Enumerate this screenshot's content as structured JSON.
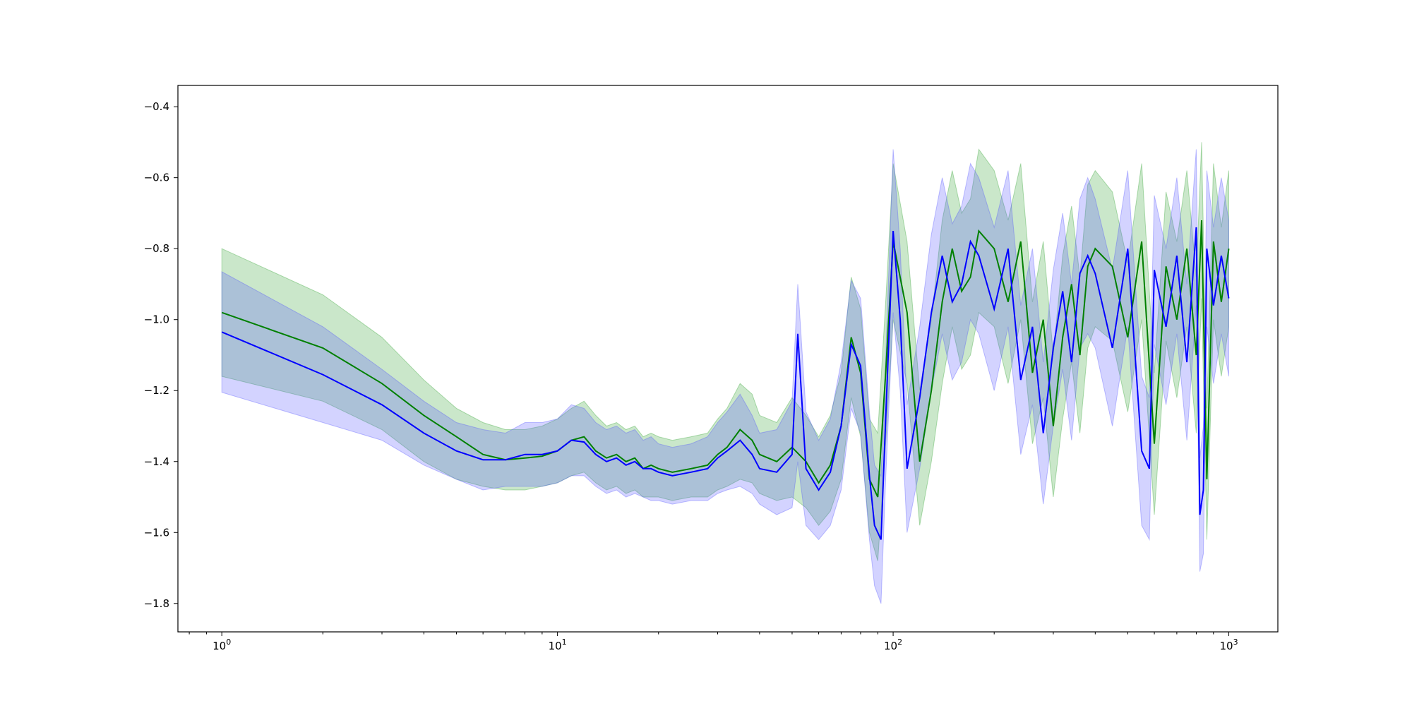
{
  "chart_data": {
    "type": "line",
    "x_scale": "log",
    "xlim": [
      0.74,
      1400
    ],
    "ylim": [
      -1.88,
      -0.34
    ],
    "grid": false,
    "legend": "none",
    "x_ticks": [
      {
        "value": 1,
        "base": "10",
        "exp": "0"
      },
      {
        "value": 10,
        "base": "10",
        "exp": "1"
      },
      {
        "value": 100,
        "base": "10",
        "exp": "2"
      },
      {
        "value": 1000,
        "base": "10",
        "exp": "3"
      }
    ],
    "y_ticks": [
      {
        "value": -0.4,
        "label": "−0.4"
      },
      {
        "value": -0.6,
        "label": "−0.6"
      },
      {
        "value": -0.8,
        "label": "−0.8"
      },
      {
        "value": -1.0,
        "label": "−1.0"
      },
      {
        "value": -1.2,
        "label": "−1.2"
      },
      {
        "value": -1.4,
        "label": "−1.4"
      },
      {
        "value": -1.6,
        "label": "−1.6"
      },
      {
        "value": -1.8,
        "label": "−1.8"
      }
    ],
    "series": [
      {
        "color": "#008000",
        "band_color": "#2ca02c",
        "x": [
          1,
          2,
          3,
          4,
          5,
          6,
          7,
          8,
          9,
          10,
          11,
          12,
          13,
          14,
          15,
          16,
          17,
          18,
          19,
          20,
          22,
          25,
          28,
          30,
          32,
          35,
          38,
          40,
          45,
          50,
          55,
          60,
          65,
          70,
          75,
          80,
          85,
          90,
          95,
          100,
          110,
          120,
          130,
          140,
          150,
          160,
          170,
          180,
          200,
          220,
          240,
          260,
          280,
          300,
          320,
          340,
          360,
          380,
          400,
          450,
          500,
          550,
          600,
          650,
          700,
          750,
          800,
          830,
          860,
          900,
          950,
          1000
        ],
        "mean": [
          -0.98,
          -1.08,
          -1.18,
          -1.27,
          -1.33,
          -1.38,
          -1.395,
          -1.39,
          -1.385,
          -1.37,
          -1.34,
          -1.33,
          -1.37,
          -1.39,
          -1.38,
          -1.4,
          -1.39,
          -1.42,
          -1.41,
          -1.42,
          -1.43,
          -1.42,
          -1.41,
          -1.38,
          -1.36,
          -1.31,
          -1.34,
          -1.38,
          -1.4,
          -1.36,
          -1.4,
          -1.46,
          -1.41,
          -1.3,
          -1.05,
          -1.15,
          -1.45,
          -1.5,
          -1.15,
          -0.78,
          -0.98,
          -1.4,
          -1.2,
          -0.95,
          -0.8,
          -0.92,
          -0.88,
          -0.75,
          -0.8,
          -0.95,
          -0.78,
          -1.15,
          -1.0,
          -1.3,
          -1.05,
          -0.9,
          -1.1,
          -0.85,
          -0.8,
          -0.85,
          -1.05,
          -0.78,
          -1.35,
          -0.85,
          -1.0,
          -0.8,
          -1.1,
          -0.72,
          -1.45,
          -0.78,
          -0.95,
          -0.8
        ],
        "lower": [
          -1.16,
          -1.23,
          -1.31,
          -1.4,
          -1.45,
          -1.47,
          -1.48,
          -1.48,
          -1.47,
          -1.46,
          -1.44,
          -1.43,
          -1.46,
          -1.48,
          -1.47,
          -1.49,
          -1.48,
          -1.5,
          -1.5,
          -1.5,
          -1.51,
          -1.5,
          -1.5,
          -1.48,
          -1.47,
          -1.45,
          -1.46,
          -1.49,
          -1.51,
          -1.5,
          -1.53,
          -1.58,
          -1.54,
          -1.45,
          -1.22,
          -1.33,
          -1.6,
          -1.68,
          -1.35,
          -1.0,
          -1.18,
          -1.58,
          -1.4,
          -1.18,
          -1.02,
          -1.14,
          -1.1,
          -0.98,
          -1.02,
          -1.18,
          -1.0,
          -1.35,
          -1.22,
          -1.5,
          -1.28,
          -1.12,
          -1.32,
          -1.08,
          -1.02,
          -1.06,
          -1.26,
          -1.0,
          -1.55,
          -1.06,
          -1.22,
          -1.02,
          -1.32,
          -0.94,
          -1.62,
          -1.0,
          -1.16,
          -1.02
        ],
        "upper": [
          -0.8,
          -0.93,
          -1.05,
          -1.17,
          -1.25,
          -1.29,
          -1.31,
          -1.31,
          -1.3,
          -1.28,
          -1.25,
          -1.23,
          -1.27,
          -1.3,
          -1.29,
          -1.31,
          -1.3,
          -1.33,
          -1.32,
          -1.33,
          -1.34,
          -1.33,
          -1.32,
          -1.28,
          -1.25,
          -1.18,
          -1.21,
          -1.27,
          -1.29,
          -1.22,
          -1.27,
          -1.33,
          -1.27,
          -1.15,
          -0.88,
          -0.97,
          -1.28,
          -1.32,
          -0.95,
          -0.56,
          -0.78,
          -1.2,
          -1.0,
          -0.72,
          -0.58,
          -0.7,
          -0.66,
          -0.52,
          -0.58,
          -0.72,
          -0.56,
          -0.95,
          -0.78,
          -1.1,
          -0.82,
          -0.68,
          -0.88,
          -0.62,
          -0.58,
          -0.64,
          -0.84,
          -0.56,
          -1.15,
          -0.64,
          -0.78,
          -0.58,
          -0.88,
          -0.5,
          -1.25,
          -0.56,
          -0.74,
          -0.58
        ]
      },
      {
        "color": "#0000ff",
        "band_color": "#5050ff",
        "x": [
          1,
          2,
          3,
          4,
          5,
          6,
          7,
          8,
          9,
          10,
          11,
          12,
          13,
          14,
          15,
          16,
          17,
          18,
          19,
          20,
          22,
          25,
          28,
          30,
          32,
          35,
          38,
          40,
          45,
          50,
          52,
          55,
          60,
          65,
          70,
          75,
          80,
          85,
          88,
          92,
          95,
          100,
          105,
          110,
          120,
          130,
          140,
          150,
          160,
          170,
          180,
          200,
          220,
          240,
          260,
          280,
          300,
          320,
          340,
          360,
          380,
          400,
          450,
          500,
          550,
          580,
          600,
          650,
          700,
          750,
          800,
          820,
          840,
          860,
          900,
          950,
          1000
        ],
        "mean": [
          -1.035,
          -1.155,
          -1.24,
          -1.32,
          -1.37,
          -1.395,
          -1.395,
          -1.38,
          -1.38,
          -1.37,
          -1.34,
          -1.345,
          -1.38,
          -1.4,
          -1.39,
          -1.41,
          -1.4,
          -1.42,
          -1.42,
          -1.43,
          -1.44,
          -1.43,
          -1.42,
          -1.39,
          -1.37,
          -1.34,
          -1.38,
          -1.42,
          -1.43,
          -1.38,
          -1.04,
          -1.42,
          -1.48,
          -1.43,
          -1.3,
          -1.07,
          -1.13,
          -1.44,
          -1.58,
          -1.62,
          -1.28,
          -0.75,
          -1.0,
          -1.42,
          -1.22,
          -0.98,
          -0.82,
          -0.95,
          -0.9,
          -0.78,
          -0.82,
          -0.97,
          -0.8,
          -1.17,
          -1.02,
          -1.32,
          -1.08,
          -0.92,
          -1.12,
          -0.87,
          -0.82,
          -0.87,
          -1.08,
          -0.8,
          -1.37,
          -1.42,
          -0.86,
          -1.02,
          -0.82,
          -1.12,
          -0.74,
          -1.55,
          -1.48,
          -0.8,
          -0.96,
          -0.82,
          -0.94
        ],
        "lower": [
          -1.205,
          -1.29,
          -1.34,
          -1.41,
          -1.45,
          -1.48,
          -1.47,
          -1.47,
          -1.47,
          -1.46,
          -1.44,
          -1.44,
          -1.47,
          -1.49,
          -1.48,
          -1.5,
          -1.49,
          -1.5,
          -1.51,
          -1.51,
          -1.52,
          -1.51,
          -1.51,
          -1.49,
          -1.48,
          -1.47,
          -1.49,
          -1.52,
          -1.55,
          -1.53,
          -1.4,
          -1.58,
          -1.62,
          -1.58,
          -1.48,
          -1.25,
          -1.32,
          -1.62,
          -1.75,
          -1.8,
          -1.45,
          -0.98,
          -1.2,
          -1.6,
          -1.42,
          -1.2,
          -1.04,
          -1.17,
          -1.12,
          -1.0,
          -1.04,
          -1.2,
          -1.02,
          -1.38,
          -1.24,
          -1.52,
          -1.3,
          -1.14,
          -1.34,
          -1.08,
          -1.04,
          -1.08,
          -1.3,
          -1.02,
          -1.58,
          -1.62,
          -1.07,
          -1.24,
          -1.04,
          -1.34,
          -0.96,
          -1.71,
          -1.66,
          -1.02,
          -1.18,
          -1.04,
          -1.16
        ],
        "upper": [
          -0.865,
          -1.02,
          -1.14,
          -1.23,
          -1.29,
          -1.31,
          -1.32,
          -1.29,
          -1.29,
          -1.28,
          -1.24,
          -1.25,
          -1.29,
          -1.31,
          -1.3,
          -1.32,
          -1.31,
          -1.34,
          -1.33,
          -1.35,
          -1.36,
          -1.35,
          -1.33,
          -1.29,
          -1.26,
          -1.21,
          -1.27,
          -1.32,
          -1.31,
          -1.23,
          -0.9,
          -1.26,
          -1.34,
          -1.28,
          -1.12,
          -0.89,
          -0.94,
          -1.26,
          -1.41,
          -1.44,
          -1.11,
          -0.52,
          -0.8,
          -1.24,
          -1.02,
          -0.76,
          -0.6,
          -0.73,
          -0.68,
          -0.56,
          -0.6,
          -0.74,
          -0.58,
          -0.96,
          -0.8,
          -1.12,
          -0.86,
          -0.7,
          -0.9,
          -0.66,
          -0.6,
          -0.66,
          -0.86,
          -0.58,
          -1.16,
          -1.22,
          -0.65,
          -0.8,
          -0.6,
          -0.9,
          -0.52,
          -1.39,
          -1.3,
          -0.58,
          -0.74,
          -0.6,
          -0.72
        ]
      }
    ]
  }
}
